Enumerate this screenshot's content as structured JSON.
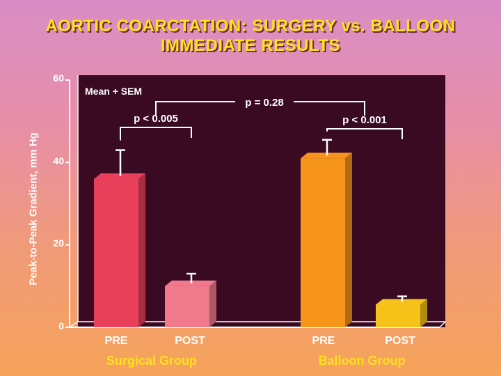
{
  "slide": {
    "title_line1": "AORTIC COARCTATION: SURGERY vs. BALLOON",
    "title_line2": "IMMEDIATE RESULTS"
  },
  "chart_data": {
    "type": "bar",
    "title": "AORTIC COARCTATION: SURGERY vs. BALLOON IMMEDIATE RESULTS",
    "ylabel": "Peak-to-Peak Gradient, mm Hg",
    "ylim": [
      0,
      60
    ],
    "yticks": [
      "0",
      "20",
      "40",
      "60"
    ],
    "legend_note": "Mean + SEM",
    "groups": [
      {
        "name": "Surgical Group",
        "bars": [
          {
            "label": "PRE",
            "value": 36,
            "sem": 7,
            "color": "#e8405a"
          },
          {
            "label": "POST",
            "value": 10,
            "sem": 3,
            "color": "#f07a8c"
          }
        ],
        "p_value": "p < 0.005"
      },
      {
        "name": "Balloon Group",
        "bars": [
          {
            "label": "PRE",
            "value": 41,
            "sem": 4.5,
            "color": "#f7941a"
          },
          {
            "label": "POST",
            "value": 5.5,
            "sem": 2,
            "color": "#f5c21a"
          }
        ],
        "p_value": "p < 0.001"
      }
    ],
    "comparison_p": "p = 0.28",
    "plot_background": "#3a0a22"
  }
}
